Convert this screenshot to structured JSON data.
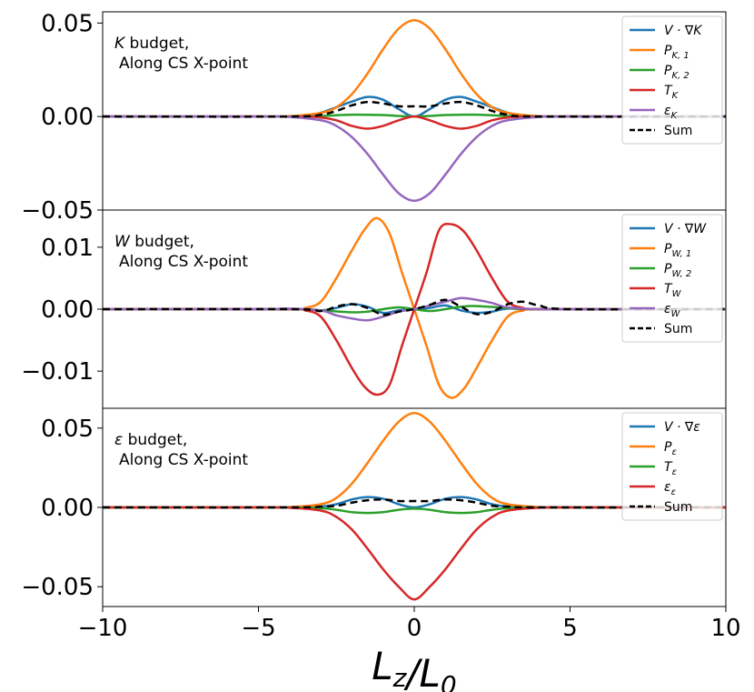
{
  "chart_data": [
    {
      "type": "line",
      "title": "K budget,",
      "title_symbol": "K",
      "title_rest": " budget,",
      "subtitle": "Along CS X-point",
      "xlim": [
        -10,
        10
      ],
      "ylim": [
        -0.05,
        0.056
      ],
      "yticks": [
        0.05,
        0.0,
        -0.05
      ],
      "ytick_labels": [
        "0.05",
        "0.00",
        "−0.05"
      ],
      "legend_position": "top-right",
      "series": [
        {
          "name": "V·∇K",
          "label": "V · ∇K",
          "color": "#1f77b4",
          "dash": "",
          "x": [
            -10,
            -6,
            -5,
            -4,
            -3.5,
            -3,
            -2.5,
            -2,
            -1.5,
            -1,
            -0.5,
            0,
            0.5,
            1,
            1.5,
            2,
            2.5,
            3,
            3.5,
            4,
            5,
            6,
            10
          ],
          "y": [
            0,
            0,
            0,
            0,
            0.0003,
            0.002,
            0.005,
            0.008,
            0.0105,
            0.009,
            0.004,
            0,
            0.004,
            0.009,
            0.0105,
            0.008,
            0.005,
            0.002,
            0.0003,
            0,
            0,
            0,
            0
          ]
        },
        {
          "name": "P_K,1",
          "label": "P",
          "sub": "K, 1",
          "color": "#ff7f0e",
          "dash": "",
          "x": [
            -10,
            -5,
            -4,
            -3,
            -2.5,
            -2,
            -1.5,
            -1,
            -0.5,
            0,
            0.5,
            1,
            1.5,
            2,
            2.5,
            3,
            4,
            5,
            10
          ],
          "y": [
            0,
            0,
            0.0002,
            0.002,
            0.005,
            0.012,
            0.023,
            0.036,
            0.047,
            0.0515,
            0.047,
            0.036,
            0.023,
            0.012,
            0.005,
            0.002,
            0.0002,
            0,
            0
          ]
        },
        {
          "name": "P_K,2",
          "label": "P",
          "sub": "K, 2",
          "color": "#2ca02c",
          "dash": "",
          "x": [
            -10,
            -4,
            -3,
            -2,
            -1,
            -0.5,
            0,
            0.5,
            1,
            2,
            3,
            4,
            10
          ],
          "y": [
            0,
            0,
            0.0003,
            0.001,
            0.0008,
            0.0003,
            0,
            0.0003,
            0.0008,
            0.001,
            0.0003,
            0,
            0
          ]
        },
        {
          "name": "T_K",
          "label": "T",
          "sub": "K",
          "color": "#d62728",
          "dash": "",
          "x": [
            -10,
            -4,
            -3,
            -2.5,
            -2,
            -1.5,
            -1,
            -0.5,
            0,
            0.5,
            1,
            1.5,
            2,
            2.5,
            3,
            4,
            10
          ],
          "y": [
            0,
            0,
            -0.0005,
            -0.002,
            -0.005,
            -0.0065,
            -0.005,
            -0.002,
            0,
            -0.002,
            -0.005,
            -0.0065,
            -0.005,
            -0.002,
            -0.0005,
            0,
            0
          ]
        },
        {
          "name": "eps_K",
          "label": "ε",
          "sub": "K",
          "color": "#9467bd",
          "dash": "",
          "x": [
            -10,
            -5,
            -4,
            -3,
            -2.5,
            -2,
            -1.5,
            -1,
            -0.5,
            0,
            0.5,
            1,
            1.5,
            2,
            2.5,
            3,
            4,
            5,
            10
          ],
          "y": [
            0,
            0,
            -0.0002,
            -0.002,
            -0.005,
            -0.011,
            -0.02,
            -0.031,
            -0.041,
            -0.045,
            -0.041,
            -0.031,
            -0.02,
            -0.011,
            -0.005,
            -0.002,
            -0.0002,
            0,
            0
          ]
        },
        {
          "name": "Sum",
          "label": "Sum",
          "color": "#000000",
          "dash": "8,5",
          "x": [
            -10,
            -4,
            -3,
            -2.5,
            -2,
            -1.5,
            -1,
            -0.5,
            0,
            0.5,
            1,
            1.5,
            2,
            2.5,
            3,
            4,
            10
          ],
          "y": [
            0,
            0,
            0.001,
            0.003,
            0.006,
            0.0078,
            0.007,
            0.0055,
            0.0055,
            0.0055,
            0.007,
            0.0078,
            0.006,
            0.003,
            0.001,
            0,
            0
          ]
        }
      ]
    },
    {
      "type": "line",
      "title": "W budget,",
      "title_symbol": "W",
      "title_rest": " budget,",
      "subtitle": "Along CS X-point",
      "xlim": [
        -10,
        10
      ],
      "ylim": [
        -0.016,
        0.016
      ],
      "yticks": [
        0.01,
        0.0,
        -0.01
      ],
      "ytick_labels": [
        "0.01",
        "0.00",
        "−0.01"
      ],
      "legend_position": "top-right",
      "series": [
        {
          "name": "V·∇W",
          "label": "V · ∇W",
          "color": "#1f77b4",
          "dash": "",
          "x": [
            -10,
            -4,
            -3,
            -2.5,
            -2,
            -1.5,
            -1,
            -0.5,
            0,
            0.5,
            1,
            1.5,
            2,
            2.5,
            3,
            4,
            10
          ],
          "y": [
            0,
            0,
            -0.0002,
            0.0002,
            0.0008,
            0.0004,
            -0.0006,
            -0.0002,
            0,
            0.0002,
            0.0006,
            -0.0002,
            -0.0006,
            -0.0004,
            0.0001,
            0,
            0
          ]
        },
        {
          "name": "P_W,1",
          "label": "P",
          "sub": "W, 1",
          "color": "#ff7f0e",
          "dash": "",
          "x": [
            -10,
            -4,
            -3.5,
            -3,
            -2.5,
            -2,
            -1.6,
            -1.2,
            -0.8,
            -0.4,
            0,
            0.4,
            0.8,
            1.2,
            1.6,
            2,
            2.5,
            3,
            3.5,
            4,
            10
          ],
          "y": [
            0,
            0,
            0.0002,
            0.0012,
            0.005,
            0.0095,
            0.0128,
            0.0147,
            0.0123,
            0.006,
            0,
            -0.006,
            -0.0123,
            -0.0143,
            -0.0128,
            -0.0095,
            -0.005,
            -0.0012,
            -0.0002,
            0,
            0
          ]
        },
        {
          "name": "P_W,2",
          "label": "P",
          "sub": "W, 2",
          "color": "#2ca02c",
          "dash": "",
          "x": [
            -10,
            -4,
            -3,
            -2,
            -1.5,
            -1,
            -0.5,
            0,
            0.5,
            1,
            1.5,
            2,
            3,
            4,
            10
          ],
          "y": [
            0,
            0,
            -0.0002,
            -0.0005,
            -0.0004,
            0,
            0.0003,
            0,
            -0.0003,
            0,
            0.0004,
            0.0005,
            0.0002,
            0,
            0
          ]
        },
        {
          "name": "T_W",
          "label": "T",
          "sub": "W",
          "color": "#d62728",
          "dash": "",
          "x": [
            -10,
            -4,
            -3.5,
            -3,
            -2.5,
            -2,
            -1.6,
            -1.2,
            -0.8,
            -0.4,
            0,
            0.4,
            0.8,
            1.2,
            1.6,
            2,
            2.5,
            3,
            3.5,
            4,
            10
          ],
          "y": [
            0,
            0,
            -0.0002,
            -0.0012,
            -0.005,
            -0.0095,
            -0.0125,
            -0.0138,
            -0.0123,
            -0.006,
            0,
            0.006,
            0.0128,
            0.0137,
            0.0125,
            0.0095,
            0.005,
            0.0012,
            0.0002,
            0,
            0
          ]
        },
        {
          "name": "eps_W",
          "label": "ε",
          "sub": "W",
          "color": "#9467bd",
          "dash": "",
          "x": [
            -10,
            -5,
            -4,
            -3,
            -2.5,
            -2,
            -1.5,
            -1,
            -0.5,
            0,
            0.5,
            1,
            1.5,
            2,
            2.5,
            3,
            4,
            5,
            10
          ],
          "y": [
            0,
            0,
            0.0001,
            -0.0002,
            -0.001,
            -0.0015,
            -0.0018,
            -0.0012,
            -0.0004,
            0,
            0.0006,
            0.0012,
            0.0018,
            0.0015,
            0.001,
            0.0003,
            0,
            0,
            0
          ]
        },
        {
          "name": "Sum",
          "label": "Sum",
          "color": "#000000",
          "dash": "8,5",
          "x": [
            -10,
            -4,
            -3,
            -2.5,
            -2,
            -1.5,
            -1,
            -0.5,
            0,
            0.5,
            1,
            1.5,
            2,
            2.5,
            3,
            3.5,
            4,
            5,
            10
          ],
          "y": [
            0,
            0,
            -0.0003,
            0.0004,
            0.0008,
            0.0002,
            -0.0009,
            -0.0004,
            0,
            0.0007,
            0.0015,
            0.0004,
            -0.0008,
            -0.0004,
            0.0008,
            0.0012,
            0.0006,
            0,
            0
          ]
        }
      ]
    },
    {
      "type": "line",
      "title": "ε budget,",
      "title_symbol": "ε",
      "title_rest": " budget,",
      "subtitle": "Along CS X-point",
      "xlim": [
        -10,
        10
      ],
      "ylim": [
        -0.0625,
        0.0625
      ],
      "yticks": [
        0.05,
        0.0,
        -0.05
      ],
      "ytick_labels": [
        "0.05",
        "0.00",
        "−0.05"
      ],
      "xticks": [
        -10,
        -5,
        0,
        5,
        10
      ],
      "xtick_labels": [
        "−10",
        "−5",
        "0",
        "5",
        "10"
      ],
      "xlabel": "L_z/L_0",
      "legend_position": "top-right",
      "series": [
        {
          "name": "V·∇ε",
          "label": "V · ∇ε",
          "color": "#1f77b4",
          "dash": "",
          "x": [
            -10,
            -4,
            -3,
            -2.5,
            -2,
            -1.5,
            -1,
            -0.5,
            0,
            0.5,
            1,
            1.5,
            2,
            2.5,
            3,
            4,
            10
          ],
          "y": [
            0,
            0,
            0.0005,
            0.002,
            0.005,
            0.0065,
            0.0055,
            0.002,
            0,
            0.002,
            0.0055,
            0.0065,
            0.005,
            0.002,
            0.0005,
            0,
            0
          ]
        },
        {
          "name": "P_eps",
          "label": "P",
          "sub": "ε",
          "color": "#ff7f0e",
          "dash": "",
          "x": [
            -10,
            -5,
            -4,
            -3,
            -2.5,
            -2,
            -1.5,
            -1,
            -0.5,
            0,
            0.5,
            1,
            1.5,
            2,
            2.5,
            3,
            4,
            5,
            10
          ],
          "y": [
            0,
            0,
            0.0002,
            0.002,
            0.006,
            0.015,
            0.028,
            0.042,
            0.054,
            0.0595,
            0.054,
            0.042,
            0.028,
            0.015,
            0.006,
            0.002,
            0.0002,
            0,
            0
          ]
        },
        {
          "name": "T_eps",
          "label": "T",
          "sub": "ε",
          "color": "#2ca02c",
          "dash": "",
          "x": [
            -10,
            -4,
            -3,
            -2.5,
            -2,
            -1.5,
            -1,
            -0.5,
            0,
            0.5,
            1,
            1.5,
            2,
            2.5,
            3,
            4,
            10
          ],
          "y": [
            0,
            0,
            -0.0005,
            -0.0015,
            -0.003,
            -0.0035,
            -0.003,
            -0.0015,
            -0.0008,
            -0.0015,
            -0.003,
            -0.0035,
            -0.003,
            -0.0015,
            -0.0005,
            0,
            0
          ]
        },
        {
          "name": "eps_eps",
          "label": "ε",
          "sub": "ε",
          "color": "#d62728",
          "dash": "",
          "x": [
            -10,
            -5,
            -4,
            -3,
            -2.5,
            -2,
            -1.5,
            -1,
            -0.5,
            0,
            0.5,
            1,
            1.5,
            2,
            2.5,
            3,
            4,
            5,
            10
          ],
          "y": [
            0,
            0,
            -0.0002,
            -0.002,
            -0.006,
            -0.014,
            -0.026,
            -0.039,
            -0.05,
            -0.058,
            -0.05,
            -0.039,
            -0.026,
            -0.014,
            -0.006,
            -0.002,
            -0.0002,
            0,
            0
          ]
        },
        {
          "name": "Sum",
          "label": "Sum",
          "color": "#000000",
          "dash": "8,5",
          "x": [
            -10,
            -4,
            -3,
            -2.5,
            -2,
            -1.5,
            -1,
            -0.5,
            0,
            0.5,
            1,
            1.5,
            2,
            2.5,
            3,
            4,
            10
          ],
          "y": [
            0,
            0,
            0.0005,
            0.001,
            0.003,
            0.0045,
            0.005,
            0.004,
            0.004,
            0.004,
            0.005,
            0.0045,
            0.003,
            0.001,
            0.0005,
            0,
            0
          ]
        }
      ]
    }
  ]
}
